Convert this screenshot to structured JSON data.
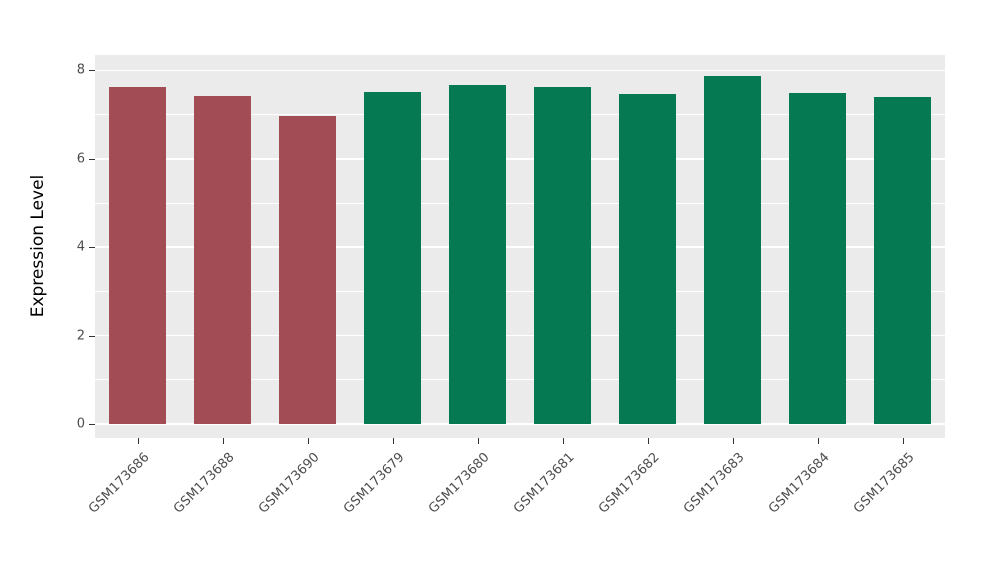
{
  "chart_data": {
    "type": "bar",
    "categories": [
      "GSM173686",
      "GSM173688",
      "GSM173690",
      "GSM173679",
      "GSM173680",
      "GSM173681",
      "GSM173682",
      "GSM173683",
      "GSM173684",
      "GSM173685"
    ],
    "values": [
      7.62,
      7.42,
      6.97,
      7.52,
      7.68,
      7.62,
      7.47,
      7.88,
      7.48,
      7.4
    ],
    "colors": [
      "#A24C55",
      "#A24C55",
      "#A24C55",
      "#057952",
      "#057952",
      "#057952",
      "#057952",
      "#057952",
      "#057952",
      "#057952"
    ],
    "group_colors": {
      "group1": "#A24C55",
      "group2": "#057952"
    },
    "title": "",
    "xlabel": "",
    "ylabel": "Expression Level",
    "yticks": [
      0,
      2,
      4,
      6,
      8
    ],
    "yticks_minor": [
      1,
      3,
      5,
      7
    ],
    "ylim": [
      0,
      8
    ],
    "grid": true,
    "legend": "none",
    "panel_bg": "#EBEBEB",
    "grid_color": "#FFFFFF"
  }
}
